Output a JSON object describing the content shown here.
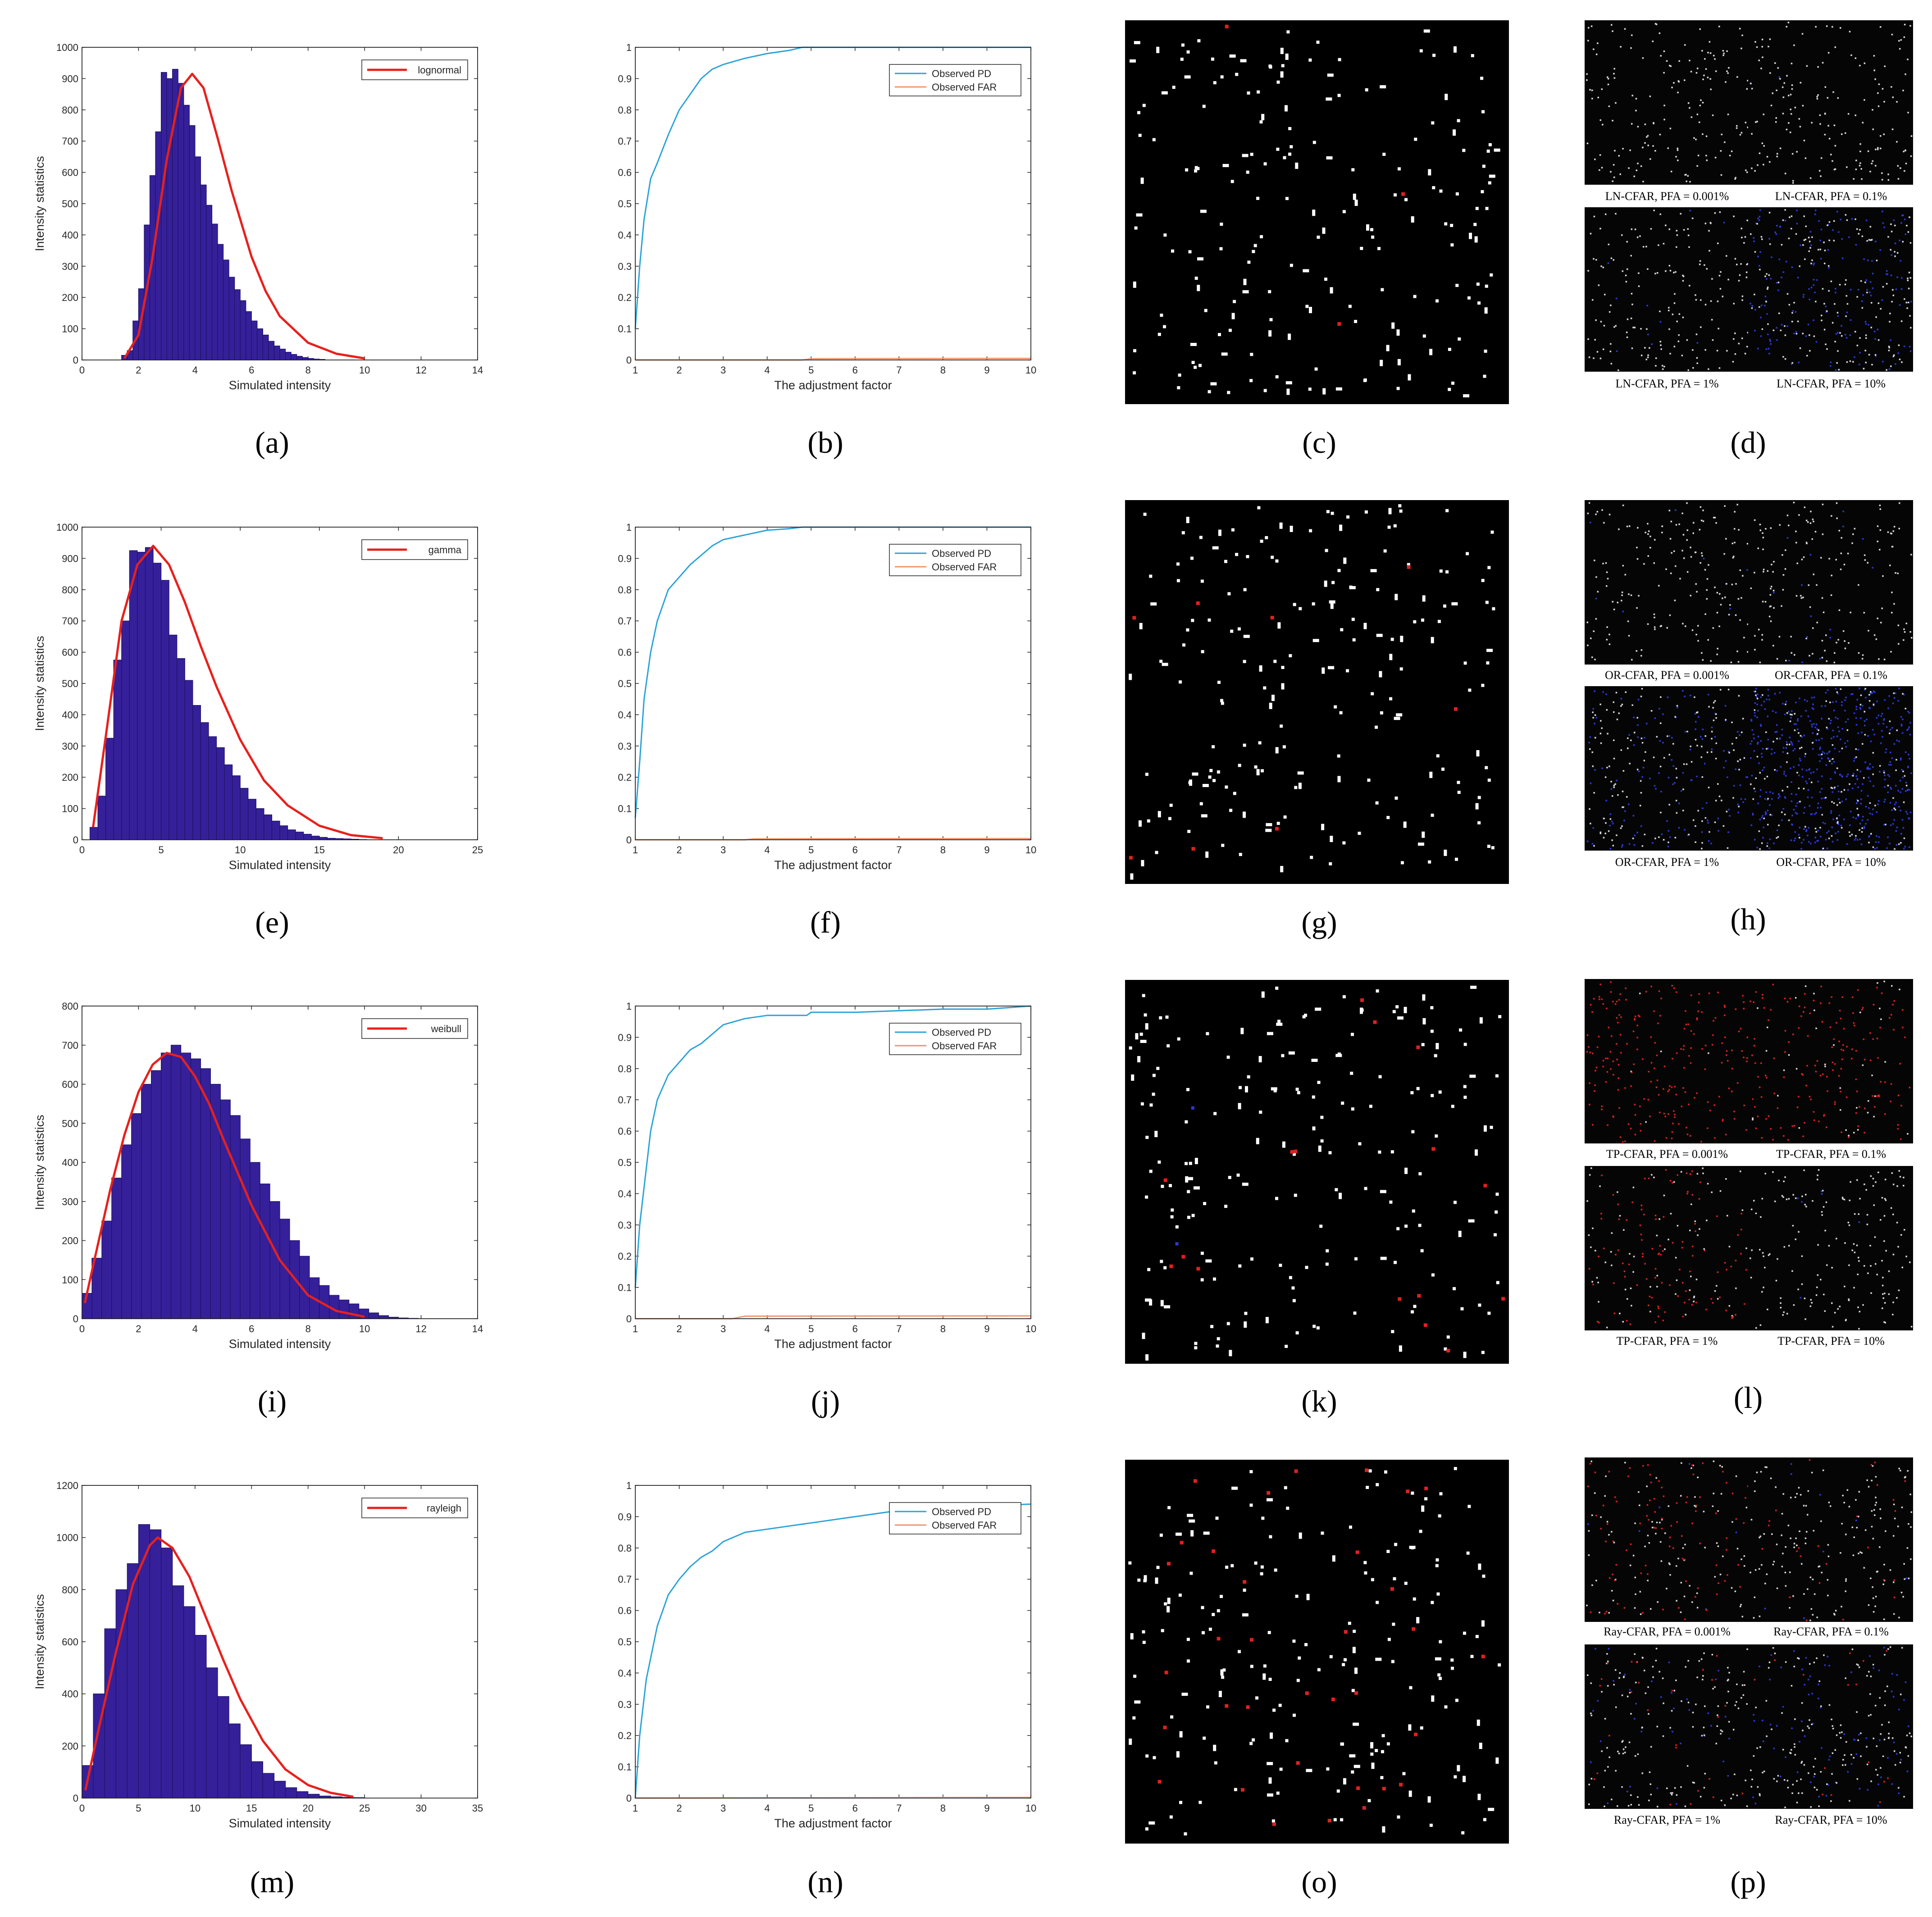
{
  "figure": {
    "panel_letters": [
      "(a)",
      "(b)",
      "(c)",
      "(d)",
      "(e)",
      "(f)",
      "(g)",
      "(h)",
      "(i)",
      "(j)",
      "(k)",
      "(l)",
      "(m)",
      "(n)",
      "(o)",
      "(p)"
    ]
  },
  "colors": {
    "bar_fill": "#35209a",
    "bar_edge": "#1d1260",
    "fit_line": "#e8201c",
    "pd_line": "#2aa3d8",
    "far_line": "#f0956a",
    "target_white": "#ffffff",
    "target_red": "#e02020",
    "false_blue": "#2a3ae0"
  },
  "chart_data": [
    {
      "type": "bar",
      "panel": "(a)",
      "title": "",
      "xlabel": "Simulated intensity",
      "ylabel": "Intensity statistics",
      "legend": [
        "lognormal"
      ],
      "legend_loc": "top-right",
      "xlim": [
        0,
        14
      ],
      "ylim": [
        0,
        1000
      ],
      "xticks": [
        0,
        2,
        4,
        6,
        8,
        10,
        12,
        14
      ],
      "yticks": [
        0,
        100,
        200,
        300,
        400,
        500,
        600,
        700,
        800,
        900,
        1000
      ],
      "bin_start": 1.4,
      "bin_width": 0.2,
      "values": [
        15,
        30,
        125,
        228,
        432,
        590,
        730,
        920,
        900,
        930,
        885,
        815,
        750,
        650,
        560,
        495,
        435,
        370,
        320,
        265,
        225,
        190,
        155,
        125,
        100,
        80,
        60,
        45,
        35,
        25,
        18,
        12,
        8,
        5,
        3,
        2
      ],
      "fit": {
        "name": "lognormal",
        "x": [
          1.5,
          2.0,
          2.5,
          3.0,
          3.5,
          3.9,
          4.3,
          4.8,
          5.3,
          6.0,
          6.5,
          7.0,
          8.0,
          9.0,
          10.0
        ],
        "y": [
          5,
          80,
          330,
          640,
          870,
          915,
          870,
          710,
          540,
          330,
          220,
          140,
          55,
          20,
          5
        ]
      }
    },
    {
      "type": "line",
      "panel": "(b)",
      "title": "",
      "xlabel": "The adjustment factor",
      "ylabel": "",
      "legend_loc": "top-right",
      "xlim": [
        1,
        10
      ],
      "ylim": [
        0,
        1
      ],
      "xticks": [
        1,
        2,
        3,
        4,
        5,
        6,
        7,
        8,
        9,
        10
      ],
      "yticks": [
        0,
        0.1,
        0.2,
        0.3,
        0.4,
        0.5,
        0.6,
        0.7,
        0.8,
        0.9,
        1
      ],
      "series": [
        {
          "name": "Observed PD",
          "x": [
            1.0,
            1.1,
            1.2,
            1.35,
            1.5,
            1.75,
            2.0,
            2.25,
            2.5,
            2.75,
            3.0,
            3.5,
            4.0,
            4.5,
            4.8,
            5.0,
            10.0
          ],
          "values": [
            0.1,
            0.3,
            0.45,
            0.58,
            0.63,
            0.72,
            0.8,
            0.85,
            0.9,
            0.93,
            0.945,
            0.965,
            0.98,
            0.99,
            1.0,
            1.0,
            1.0
          ]
        },
        {
          "name": "Observed FAR",
          "x": [
            1,
            4.8,
            5,
            10
          ],
          "values": [
            0.0,
            0.0,
            0.004,
            0.005
          ]
        }
      ]
    },
    {
      "type": "bar",
      "panel": "(e)",
      "title": "",
      "xlabel": "Simulated intensity",
      "ylabel": "Intensity statistics",
      "legend": [
        "gamma"
      ],
      "legend_loc": "top-right",
      "xlim": [
        0,
        25
      ],
      "ylim": [
        0,
        1000
      ],
      "xticks": [
        0,
        5,
        10,
        15,
        20,
        25
      ],
      "yticks": [
        0,
        100,
        200,
        300,
        400,
        500,
        600,
        700,
        800,
        900,
        1000
      ],
      "bin_start": 0.5,
      "bin_width": 0.5,
      "values": [
        40,
        140,
        325,
        575,
        700,
        925,
        920,
        935,
        885,
        830,
        655,
        580,
        510,
        430,
        375,
        330,
        295,
        240,
        205,
        165,
        130,
        100,
        80,
        60,
        45,
        32,
        25,
        18,
        12,
        8,
        5,
        4,
        3,
        2,
        1
      ],
      "fit": {
        "name": "gamma",
        "x": [
          0.7,
          1.5,
          2.5,
          3.5,
          4.5,
          5.5,
          6.5,
          7.5,
          8.5,
          10,
          11.5,
          13,
          15,
          17,
          19
        ],
        "y": [
          40,
          330,
          700,
          880,
          940,
          880,
          760,
          620,
          490,
          320,
          190,
          110,
          45,
          15,
          5
        ]
      }
    },
    {
      "type": "line",
      "panel": "(f)",
      "title": "",
      "xlabel": "The adjustment factor",
      "ylabel": "",
      "legend_loc": "top-right",
      "xlim": [
        1,
        10
      ],
      "ylim": [
        0,
        1
      ],
      "xticks": [
        1,
        2,
        3,
        4,
        5,
        6,
        7,
        8,
        9,
        10
      ],
      "yticks": [
        0,
        0.1,
        0.2,
        0.3,
        0.4,
        0.5,
        0.6,
        0.7,
        0.8,
        0.9,
        1
      ],
      "series": [
        {
          "name": "Observed PD",
          "x": [
            1.0,
            1.1,
            1.2,
            1.35,
            1.5,
            1.75,
            2.0,
            2.25,
            2.5,
            2.75,
            3.0,
            3.5,
            4.0,
            4.5,
            4.8,
            5.0,
            10.0
          ],
          "values": [
            0.07,
            0.25,
            0.45,
            0.6,
            0.7,
            0.8,
            0.84,
            0.88,
            0.91,
            0.94,
            0.96,
            0.975,
            0.99,
            0.995,
            1.0,
            1.0,
            1.0
          ]
        },
        {
          "name": "Observed FAR",
          "x": [
            1,
            3.5,
            3.7,
            10
          ],
          "values": [
            0.0,
            0.0,
            0.003,
            0.004
          ]
        }
      ]
    },
    {
      "type": "bar",
      "panel": "(i)",
      "title": "",
      "xlabel": "Simulated intensity",
      "ylabel": "Intensity statistics",
      "legend": [
        "weibull"
      ],
      "legend_loc": "top-right",
      "xlim": [
        0,
        14
      ],
      "ylim": [
        0,
        800
      ],
      "xticks": [
        0,
        2,
        4,
        6,
        8,
        10,
        12,
        14
      ],
      "yticks": [
        0,
        100,
        200,
        300,
        400,
        500,
        600,
        700,
        800
      ],
      "bin_start": 0.0,
      "bin_width": 0.35,
      "values": [
        65,
        155,
        250,
        360,
        445,
        525,
        600,
        635,
        680,
        700,
        680,
        665,
        640,
        600,
        560,
        520,
        460,
        400,
        345,
        300,
        255,
        200,
        160,
        105,
        85,
        60,
        48,
        38,
        25,
        15,
        8,
        4,
        2,
        1
      ],
      "fit": {
        "name": "weibull",
        "x": [
          0.1,
          0.5,
          1.0,
          1.5,
          2.0,
          2.5,
          3.0,
          3.5,
          4.0,
          4.5,
          5.0,
          6.0,
          7.0,
          8.0,
          9.0,
          10.0
        ],
        "y": [
          40,
          170,
          330,
          470,
          580,
          650,
          680,
          670,
          620,
          550,
          460,
          290,
          150,
          60,
          20,
          5
        ]
      }
    },
    {
      "type": "line",
      "panel": "(j)",
      "title": "",
      "xlabel": "The adjustment factor",
      "ylabel": "",
      "legend_loc": "top-right",
      "xlim": [
        1,
        10
      ],
      "ylim": [
        0,
        1
      ],
      "xticks": [
        1,
        2,
        3,
        4,
        5,
        6,
        7,
        8,
        9,
        10
      ],
      "yticks": [
        0,
        0.1,
        0.2,
        0.3,
        0.4,
        0.5,
        0.6,
        0.7,
        0.8,
        0.9,
        1
      ],
      "series": [
        {
          "name": "Observed PD",
          "x": [
            1.0,
            1.1,
            1.2,
            1.35,
            1.5,
            1.75,
            2.0,
            2.25,
            2.5,
            2.75,
            3.0,
            3.5,
            4.0,
            4.5,
            4.9,
            5.0,
            6.0,
            7.0,
            8.0,
            9.0,
            10.0
          ],
          "values": [
            0.1,
            0.3,
            0.42,
            0.6,
            0.7,
            0.78,
            0.82,
            0.86,
            0.88,
            0.91,
            0.94,
            0.96,
            0.97,
            0.97,
            0.97,
            0.98,
            0.98,
            0.985,
            0.99,
            0.99,
            1.0
          ]
        },
        {
          "name": "Observed FAR",
          "x": [
            1,
            3.2,
            3.5,
            10
          ],
          "values": [
            0.0,
            0.0,
            0.008,
            0.009
          ]
        }
      ]
    },
    {
      "type": "bar",
      "panel": "(m)",
      "title": "",
      "xlabel": "Simulated intensity",
      "ylabel": "Intensity statistics",
      "legend": [
        "rayleigh"
      ],
      "legend_loc": "top-right",
      "xlim": [
        0,
        35
      ],
      "ylim": [
        0,
        1200
      ],
      "xticks": [
        0,
        5,
        10,
        15,
        20,
        25,
        30,
        35
      ],
      "yticks": [
        0,
        200,
        400,
        600,
        800,
        1000,
        1200
      ],
      "bin_start": 0.0,
      "bin_width": 1.0,
      "values": [
        125,
        400,
        650,
        800,
        900,
        1050,
        1030,
        960,
        815,
        735,
        625,
        500,
        390,
        285,
        205,
        140,
        95,
        65,
        40,
        25,
        15,
        8,
        5,
        3,
        2
      ],
      "fit": {
        "name": "rayleigh",
        "x": [
          0.3,
          1.5,
          3,
          4.5,
          6,
          6.7,
          8,
          9.5,
          11,
          12.5,
          14,
          16,
          18,
          20,
          22,
          24
        ],
        "y": [
          30,
          270,
          560,
          820,
          970,
          1000,
          960,
          850,
          690,
          530,
          380,
          220,
          110,
          50,
          20,
          5
        ]
      }
    },
    {
      "type": "line",
      "panel": "(n)",
      "title": "",
      "xlabel": "The adjustment factor",
      "ylabel": "",
      "legend_loc": "top-right",
      "xlim": [
        1,
        10
      ],
      "ylim": [
        0,
        1
      ],
      "xticks": [
        1,
        2,
        3,
        4,
        5,
        6,
        7,
        8,
        9,
        10
      ],
      "yticks": [
        0,
        0.1,
        0.2,
        0.3,
        0.4,
        0.5,
        0.6,
        0.7,
        0.8,
        0.9,
        1
      ],
      "series": [
        {
          "name": "Observed PD",
          "x": [
            1.0,
            1.1,
            1.25,
            1.5,
            1.75,
            2.0,
            2.25,
            2.5,
            2.75,
            3.0,
            3.5,
            4.0,
            4.5,
            5.0,
            5.5,
            6.0,
            6.5,
            7.0,
            8.0,
            9.0,
            10.0
          ],
          "values": [
            0.0,
            0.2,
            0.38,
            0.55,
            0.65,
            0.7,
            0.74,
            0.77,
            0.79,
            0.82,
            0.85,
            0.86,
            0.87,
            0.88,
            0.89,
            0.9,
            0.91,
            0.92,
            0.93,
            0.935,
            0.94
          ]
        },
        {
          "name": "Observed FAR",
          "x": [
            1,
            10
          ],
          "values": [
            0.0,
            0.002
          ]
        }
      ]
    }
  ],
  "legend_labels": {
    "pd": "Observed PD",
    "far": "Observed FAR"
  },
  "thumb_captions": {
    "d": [
      "LN-CFAR, PFA = 0.001%",
      "LN-CFAR, PFA = 0.1%",
      "LN-CFAR, PFA = 1%",
      "LN-CFAR, PFA = 10%"
    ],
    "h": [
      "OR-CFAR, PFA = 0.001%",
      "OR-CFAR, PFA = 0.1%",
      "OR-CFAR, PFA = 1%",
      "OR-CFAR, PFA = 10%"
    ],
    "l": [
      "TP-CFAR, PFA = 0.001%",
      "TP-CFAR, PFA = 0.1%",
      "TP-CFAR, PFA = 1%",
      "TP-CFAR, PFA = 10%"
    ],
    "p": [
      "Ray-CFAR, PFA = 0.001%",
      "Ray-CFAR, PFA = 0.1%",
      "Ray-CFAR, PFA = 1%",
      "Ray-CFAR, PFA = 10%"
    ]
  },
  "scenes": {
    "c": {
      "white_targets": 200,
      "red_targets": 3,
      "blue_targets": 0
    },
    "g": {
      "white_targets": 200,
      "red_targets": 8,
      "blue_targets": 0
    },
    "k": {
      "white_targets": 200,
      "red_targets": 16,
      "blue_targets": 2
    },
    "o": {
      "white_targets": 200,
      "red_targets": 34,
      "blue_targets": 0
    }
  }
}
